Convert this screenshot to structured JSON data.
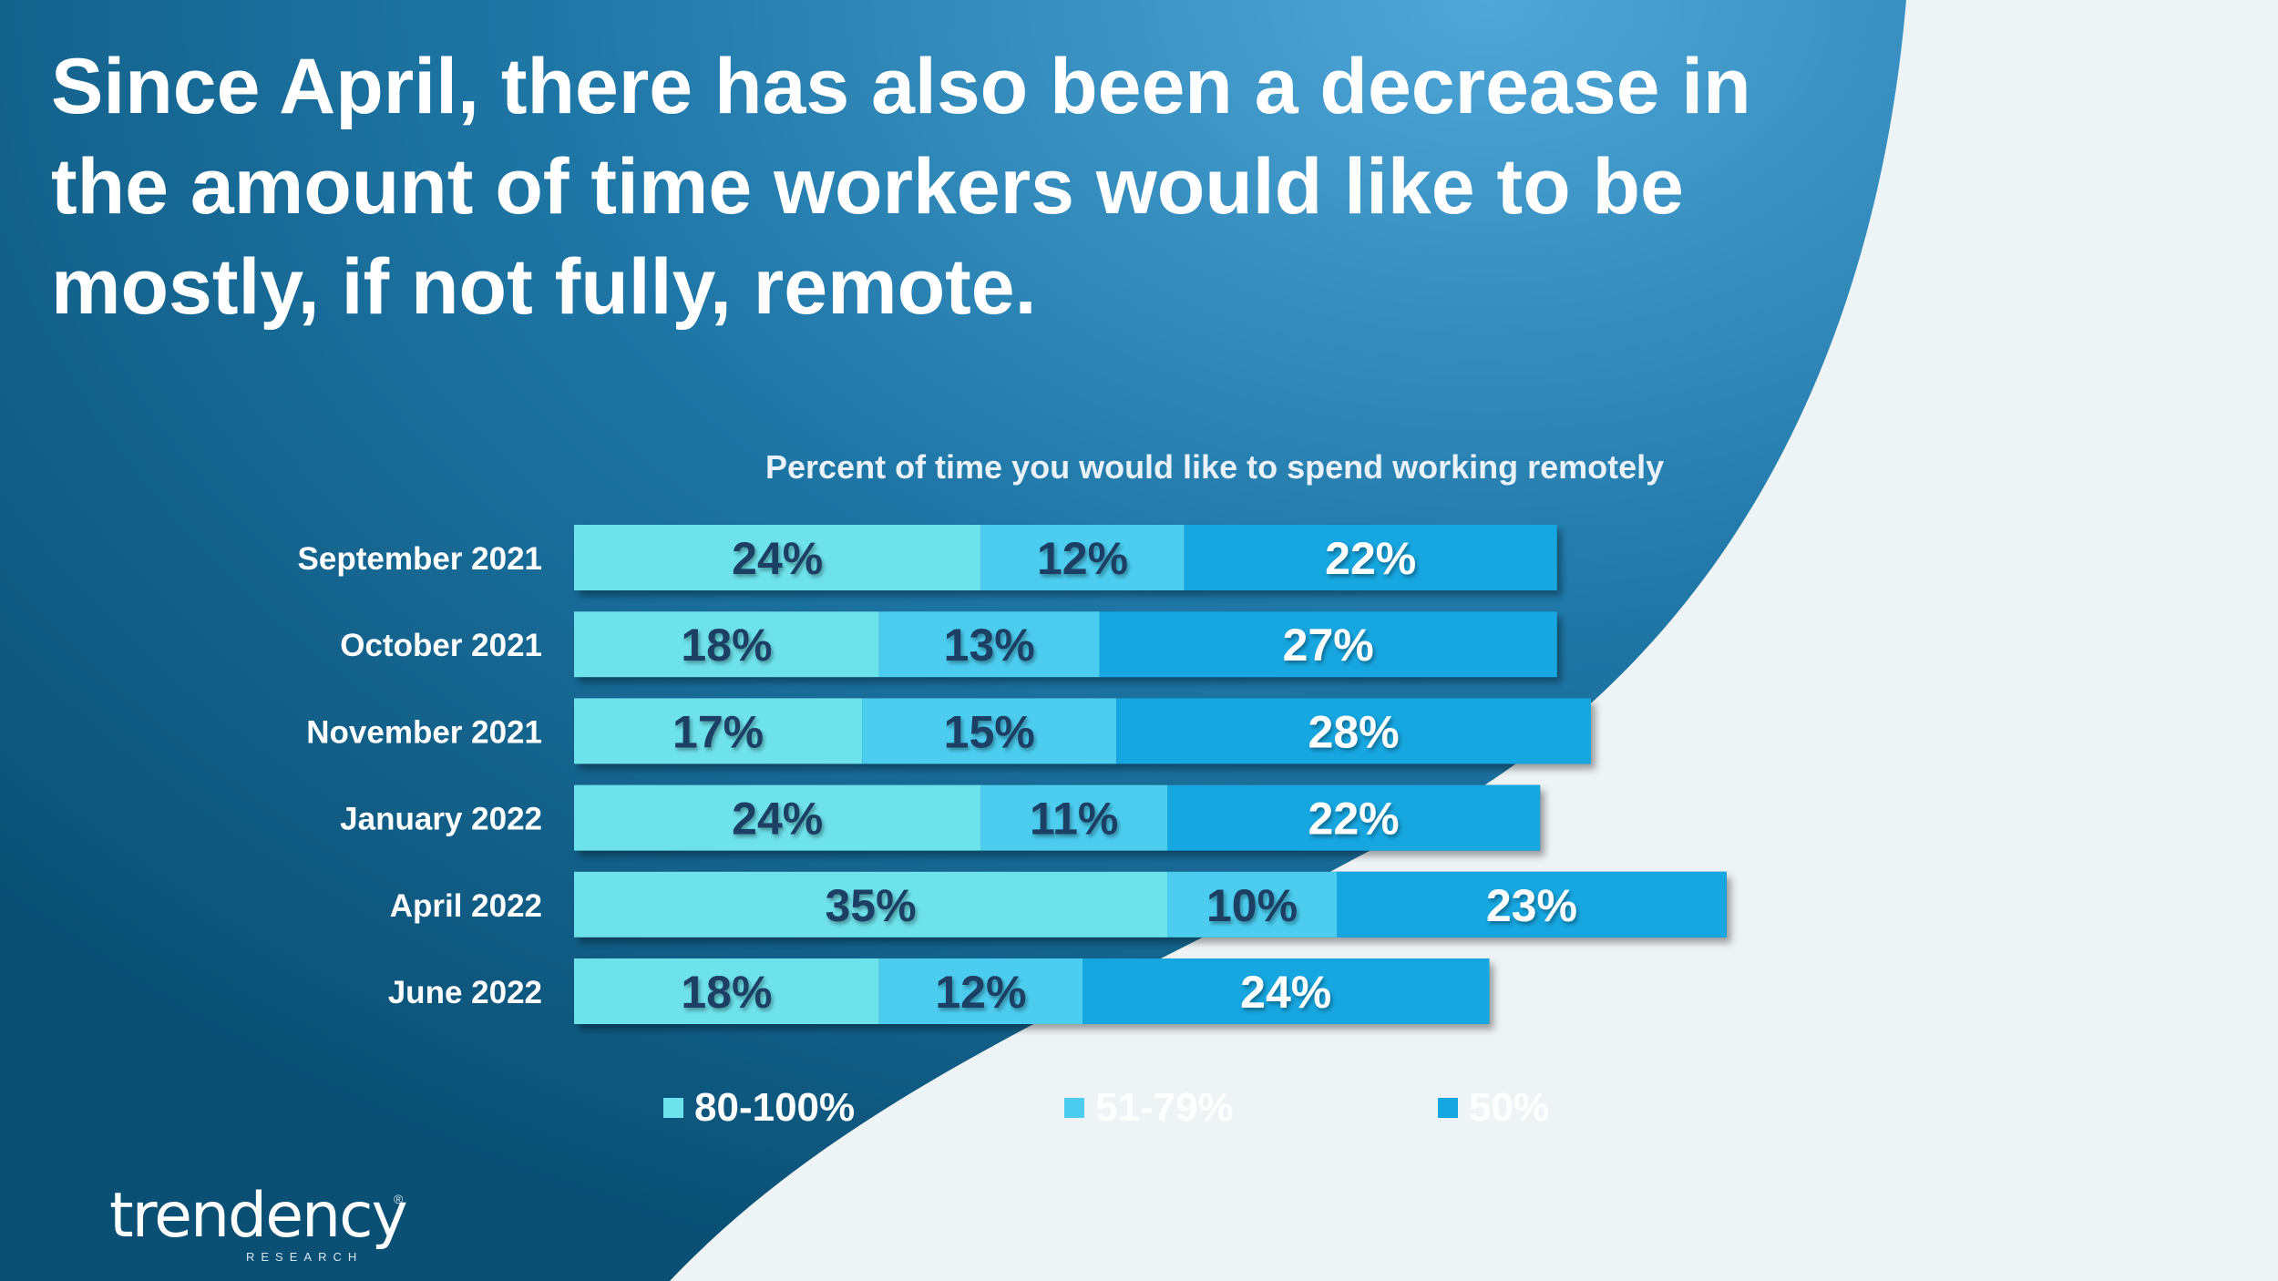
{
  "slide": {
    "title": "Since April, there has also been a decrease in the amount of time workers would like to be mostly, if not fully, remote."
  },
  "colors": {
    "bg_dark": "#0c577e",
    "bg_light": "#eef3f5",
    "series": [
      "#6ee2ea",
      "#4ccdf0",
      "#16a6e0"
    ],
    "label_dark": "#1e3f63",
    "label_light": "#ffffff"
  },
  "chart_data": {
    "type": "bar",
    "orientation": "horizontal",
    "stacked": true,
    "title": "Percent of time you would like to spend working remotely",
    "categories": [
      "September 2021",
      "October 2021",
      "November 2021",
      "January 2022",
      "April 2022",
      "June 2022"
    ],
    "series": [
      {
        "name": "80-100%",
        "values": [
          24,
          18,
          17,
          24,
          35,
          18
        ]
      },
      {
        "name": "51-79%",
        "values": [
          12,
          13,
          15,
          11,
          10,
          12
        ]
      },
      {
        "name": "50%",
        "values": [
          22,
          27,
          28,
          22,
          23,
          24
        ]
      }
    ],
    "value_suffix": "%",
    "legend_position": "bottom",
    "grid": false
  },
  "logo": {
    "name": "trendency",
    "sub": "RESEARCH",
    "mark": "®"
  }
}
